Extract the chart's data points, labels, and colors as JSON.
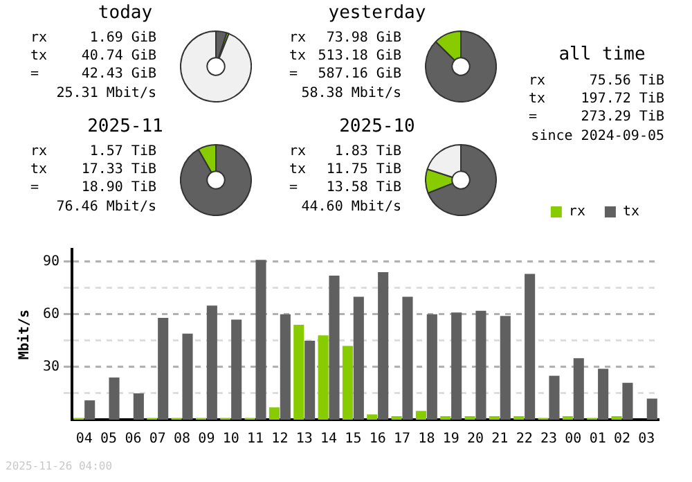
{
  "chart_data": [
    {
      "type": "donut",
      "title": "today",
      "categories": [
        null,
        null,
        null
      ],
      "values": [
        5,
        1,
        94
      ],
      "colors": [
        "#606060",
        "#88cc00",
        "#f0f0f0"
      ],
      "annotations": [
        "rx",
        "1.69 GiB",
        "tx",
        "40.74 GiB",
        "=",
        "42.43 GiB",
        "25.31 Mbit/s"
      ]
    },
    {
      "type": "donut",
      "title": "yesterday",
      "categories": [
        null,
        null,
        null
      ],
      "values": [
        87.4,
        12.6,
        0
      ],
      "colors": [
        "#606060",
        "#88cc00",
        "#f0f0f0"
      ],
      "annotations": [
        "rx",
        "73.98 GiB",
        "tx",
        "513.18 GiB",
        "=",
        "587.16 GiB",
        "58.38 Mbit/s"
      ]
    },
    {
      "type": "other",
      "title": "all time",
      "annotations": [
        "rx",
        "75.56 TiB",
        "tx",
        "197.72 TiB",
        "=",
        "273.29 TiB",
        "since 2024-09-05"
      ]
    },
    {
      "type": "donut",
      "title": "2025-11",
      "categories": [
        null,
        null,
        null
      ],
      "values": [
        91.7,
        8.3,
        0
      ],
      "colors": [
        "#606060",
        "#88cc00",
        "#f0f0f0"
      ],
      "annotations": [
        "rx",
        "1.57 TiB",
        "tx",
        "17.33 TiB",
        "=",
        "18.90 TiB",
        "76.46 Mbit/s"
      ]
    },
    {
      "type": "donut",
      "title": "2025-10",
      "categories": [
        null,
        null,
        null
      ],
      "values": [
        69,
        11,
        20
      ],
      "colors": [
        "#606060",
        "#88cc00",
        "#f0f0f0"
      ],
      "annotations": [
        "rx",
        "1.83 TiB",
        "tx",
        "11.75 TiB",
        "=",
        "13.58 TiB",
        "44.60 Mbit/s"
      ]
    },
    {
      "type": "bar",
      "ylabel": "Mbit/s",
      "legend": "top right",
      "grid": "y",
      "categories": [
        "04",
        "05",
        "06",
        "07",
        "08",
        "09",
        "10",
        "11",
        "12",
        "13",
        "14",
        "15",
        "16",
        "17",
        "18",
        "19",
        "20",
        "21",
        "22",
        "23",
        "00",
        "01",
        "02",
        "03"
      ],
      "series": [
        {
          "name": "rx",
          "color": "#88cc00",
          "values": [
            1,
            0,
            0,
            1,
            1,
            1,
            1,
            1,
            7,
            54,
            48,
            42,
            3,
            2,
            5,
            2,
            2,
            2,
            2,
            1,
            2,
            1,
            2,
            0
          ]
        },
        {
          "name": "tx",
          "color": "#606060",
          "values": [
            11,
            24,
            15,
            58,
            49,
            65,
            57,
            91,
            60,
            45,
            82,
            70,
            84,
            70,
            60,
            61,
            62,
            59,
            83,
            25,
            35,
            29,
            21,
            12
          ]
        }
      ],
      "ylim": [
        0,
        97
      ],
      "yticks": [
        {
          "value": 0,
          "label": null
        },
        {
          "value": 15,
          "label": null
        },
        30,
        {
          "value": 45,
          "label": null
        },
        60,
        {
          "value": 75,
          "label": null
        },
        90
      ],
      "annotations": [
        "2025-11-26 04:00"
      ]
    }
  ]
}
